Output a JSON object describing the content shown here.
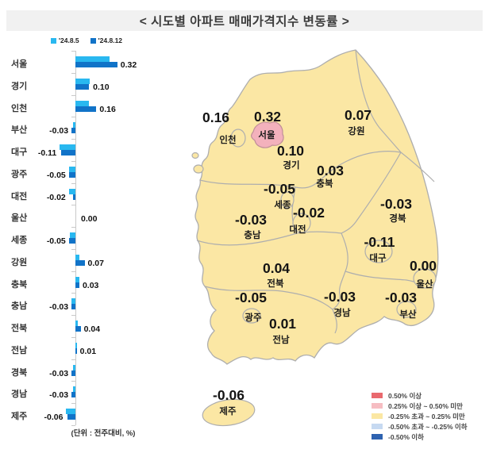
{
  "title": "< 시도별 아파트 매매가격지수 변동률 >",
  "unit_note": "(단위 : 전주대비, %)",
  "colors": {
    "bar_prev": "#29b8f0",
    "bar_curr": "#1173c8",
    "land_fill": "#fbe7a4",
    "seoul_fill": "#f3b1bc",
    "map_border": "#aeaeae",
    "seoul_border": "#c08f98",
    "title_bg": "#f1f1f1"
  },
  "series_legend": [
    {
      "label": "'24.8.5",
      "color": "#29b8f0"
    },
    {
      "label": "'24.8.12",
      "color": "#1173c8"
    }
  ],
  "chart_data": {
    "type": "bar",
    "orientation": "horizontal",
    "title": "< 시도별 아파트 매매가격지수 변동률 >",
    "unit": "전주대비, %",
    "categories": [
      "서울",
      "경기",
      "인천",
      "부산",
      "대구",
      "광주",
      "대전",
      "울산",
      "세종",
      "강원",
      "충북",
      "충남",
      "전북",
      "전남",
      "경북",
      "경남",
      "제주"
    ],
    "series": [
      {
        "name": "'24.8.5",
        "values": [
          0.26,
          0.11,
          0.1,
          -0.02,
          -0.12,
          -0.05,
          -0.05,
          0.0,
          -0.04,
          0.03,
          0.03,
          -0.03,
          0.02,
          0.01,
          -0.02,
          -0.02,
          -0.07
        ]
      },
      {
        "name": "'24.8.12",
        "values": [
          0.32,
          0.1,
          0.16,
          -0.03,
          -0.11,
          -0.05,
          -0.02,
          0.0,
          -0.05,
          0.07,
          0.03,
          -0.03,
          0.04,
          0.01,
          -0.03,
          -0.03,
          -0.06
        ]
      }
    ],
    "value_labels": [
      "0.32",
      "0.10",
      "0.16",
      "-0.03",
      "-0.11",
      "-0.05",
      "-0.02",
      "0.00",
      "-0.05",
      "0.07",
      "0.03",
      "-0.03",
      "0.04",
      "0.01",
      "-0.03",
      "-0.03",
      "-0.06"
    ]
  },
  "map": {
    "regions": [
      {
        "name": "서울",
        "value": "0.32",
        "highlight": true
      },
      {
        "name": "경기",
        "value": "0.10"
      },
      {
        "name": "인천",
        "value": "0.16"
      },
      {
        "name": "부산",
        "value": "-0.03"
      },
      {
        "name": "대구",
        "value": "-0.11"
      },
      {
        "name": "광주",
        "value": "-0.05"
      },
      {
        "name": "대전",
        "value": "-0.02"
      },
      {
        "name": "울산",
        "value": "0.00"
      },
      {
        "name": "세종",
        "value": "-0.05"
      },
      {
        "name": "강원",
        "value": "0.07"
      },
      {
        "name": "충북",
        "value": "0.03"
      },
      {
        "name": "충남",
        "value": "-0.03"
      },
      {
        "name": "전북",
        "value": "0.04"
      },
      {
        "name": "전남",
        "value": "0.01"
      },
      {
        "name": "경북",
        "value": "-0.03"
      },
      {
        "name": "경남",
        "value": "-0.03"
      },
      {
        "name": "제주",
        "value": "-0.06"
      }
    ]
  },
  "map_legend": {
    "items": [
      {
        "color": "#e9696e",
        "label": "0.50% 이상"
      },
      {
        "color": "#f6bdc2",
        "label": "0.25% 이상 ~ 0.50% 미만"
      },
      {
        "color": "#fbe7a3",
        "label": "-0.25% 초과 ~ 0.25% 미만"
      },
      {
        "color": "#c6d9f1",
        "label": "-0.50% 초과 ~ -0.25% 이하"
      },
      {
        "color": "#2e62b0",
        "label": "-0.50% 이하"
      }
    ]
  }
}
